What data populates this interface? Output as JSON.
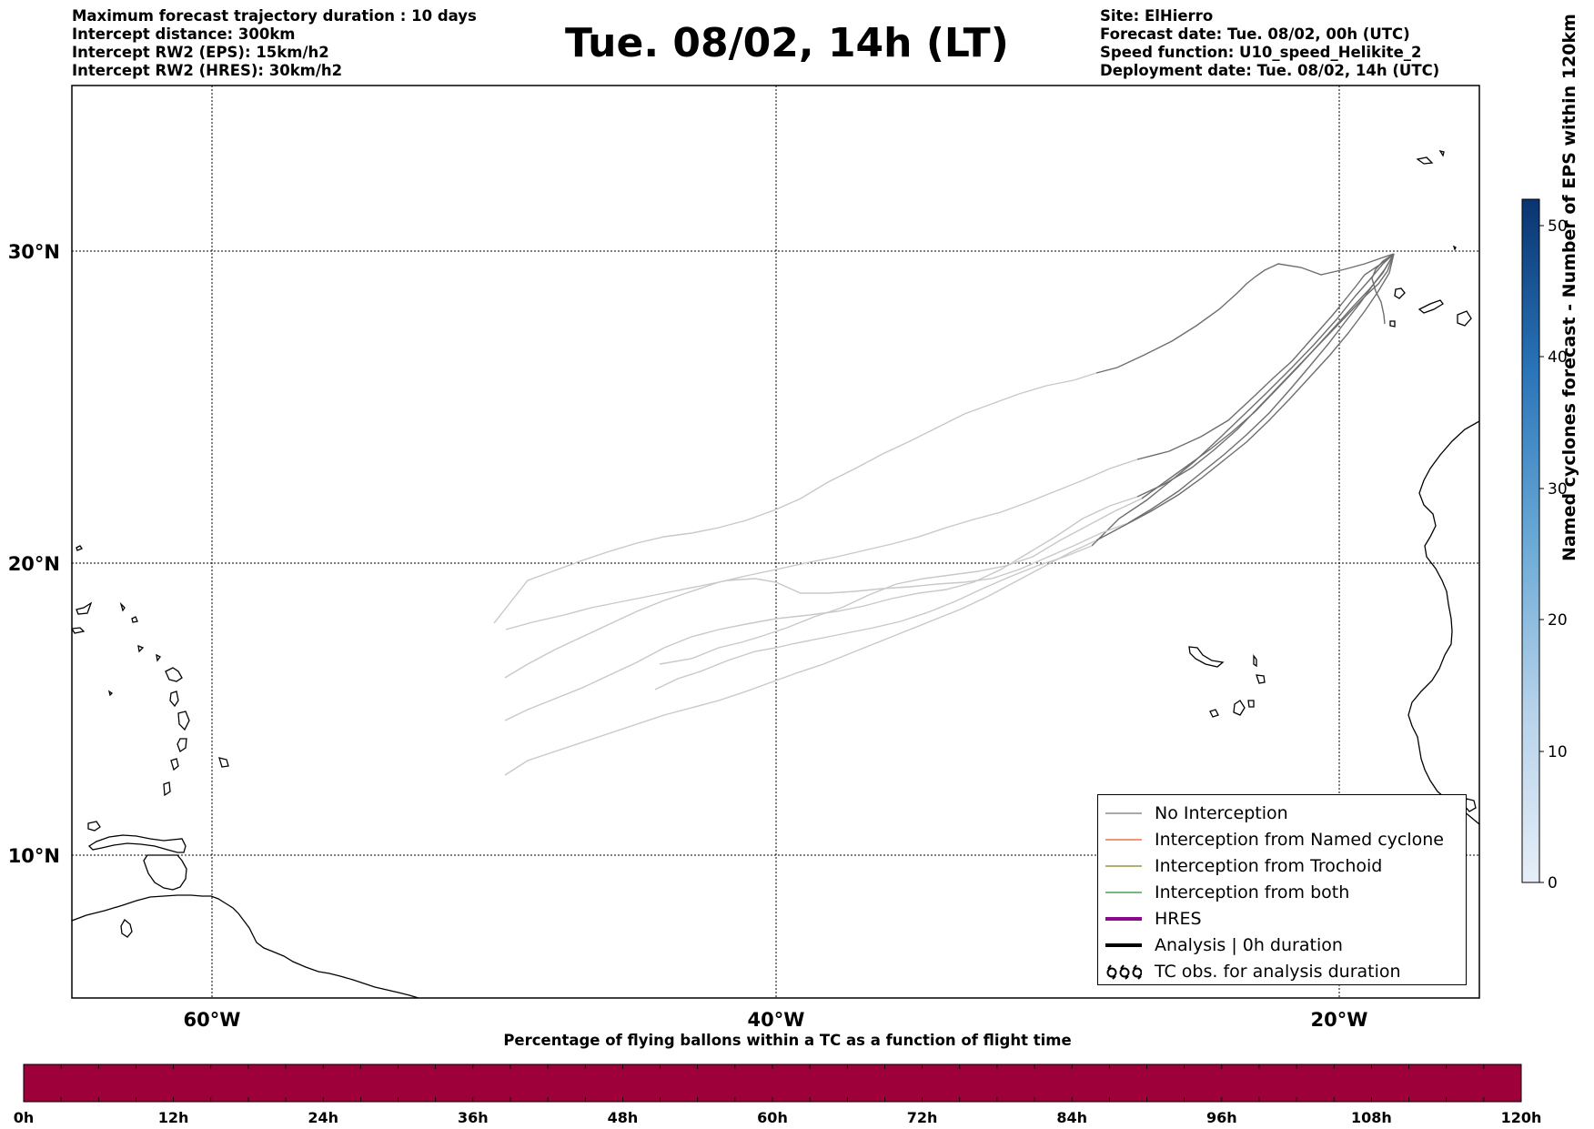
{
  "header": {
    "left_lines": [
      "Maximum forecast trajectory duration : 10 days",
      "Intercept distance: 300km",
      "Intercept RW2 (EPS):  15km/h2",
      "Intercept RW2 (HRES): 30km/h2"
    ],
    "title": "Tue. 08/02, 14h (LT)",
    "right_lines": [
      "Site: ElHierro",
      "Forecast date: Tue. 08/02, 00h (UTC)",
      "Speed function: U10_speed_Helikite_2",
      "Deployment date: Tue. 08/02, 14h (UTC)"
    ]
  },
  "map": {
    "lat_labels": [
      "30°N",
      "20°N",
      "10°N"
    ],
    "lon_labels": [
      "60°W",
      "40°W",
      "20°W"
    ],
    "extent": {
      "lon_min": -65,
      "lon_max": -15,
      "lat_min": 5.4,
      "lat_max": 34.7
    }
  },
  "legend": {
    "items": [
      {
        "label": "No Interception",
        "color": "#777777",
        "style": "thin"
      },
      {
        "label": "Interception from Named cyclone",
        "color": "#e8542a",
        "style": "thin"
      },
      {
        "label": "Interception from Trochoid",
        "color": "#808020",
        "style": "thin"
      },
      {
        "label": "Interception from both",
        "color": "#2e8b2e",
        "style": "thin"
      },
      {
        "label": "HRES",
        "color": "#8b0a8b",
        "style": "thick"
      },
      {
        "label": "Analysis | 0h duration",
        "color": "#000000",
        "style": "thick"
      },
      {
        "label": "TC obs. for analysis duration",
        "color": "#000000",
        "style": "symbol"
      }
    ]
  },
  "colorbar": {
    "label": "Named cyclones forecast - Number of EPS within 120km",
    "ticks": [
      "0",
      "10",
      "20",
      "30",
      "40",
      "50"
    ],
    "max": 52,
    "color_low": "#e6eef8",
    "color_high": "#0a3470"
  },
  "time_bar": {
    "title": "Percentage of flying ballons within a TC as a function of flight time",
    "ticks": [
      "0h",
      "12h",
      "24h",
      "36h",
      "48h",
      "60h",
      "72h",
      "84h",
      "96h",
      "108h",
      "120h"
    ],
    "color": "#9e0039"
  }
}
